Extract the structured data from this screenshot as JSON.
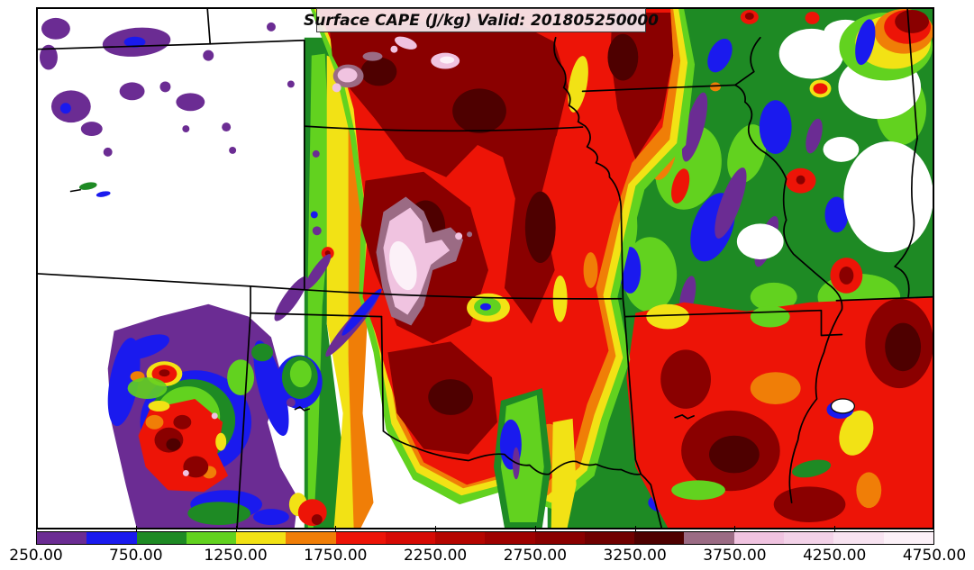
{
  "title": {
    "text": "Surface CAPE (J/kg) Valid: 201805250000"
  },
  "colorbar": {
    "min": 250,
    "max": 4750,
    "tick_values": [
      250,
      750,
      1250,
      1750,
      2250,
      2750,
      3250,
      3750,
      4250,
      4750
    ],
    "tick_labels": [
      "250.00",
      "750.00",
      "1250.00",
      "1750.00",
      "2250.00",
      "2750.00",
      "3250.00",
      "3750.00",
      "4250.00",
      "4750.00"
    ],
    "segments": [
      {
        "from": 250,
        "to": 500,
        "color": "#6B2C93"
      },
      {
        "from": 500,
        "to": 750,
        "color": "#1A1AEE"
      },
      {
        "from": 750,
        "to": 1000,
        "color": "#1E8A24"
      },
      {
        "from": 1000,
        "to": 1250,
        "color": "#62D21F"
      },
      {
        "from": 1250,
        "to": 1500,
        "color": "#F2E215"
      },
      {
        "from": 1500,
        "to": 1750,
        "color": "#F07E07"
      },
      {
        "from": 1750,
        "to": 2000,
        "color": "#ED1407"
      },
      {
        "from": 2000,
        "to": 2250,
        "color": "#D60A04"
      },
      {
        "from": 2250,
        "to": 2500,
        "color": "#B50500"
      },
      {
        "from": 2500,
        "to": 2750,
        "color": "#9E0100"
      },
      {
        "from": 2750,
        "to": 3000,
        "color": "#8A0000"
      },
      {
        "from": 3000,
        "to": 3250,
        "color": "#700000"
      },
      {
        "from": 3250,
        "to": 3500,
        "color": "#4E0000"
      },
      {
        "from": 3500,
        "to": 3750,
        "color": "#9B6B84"
      },
      {
        "from": 3750,
        "to": 4000,
        "color": "#F0C3E0"
      },
      {
        "from": 4000,
        "to": 4250,
        "color": "#F3D2E8"
      },
      {
        "from": 4250,
        "to": 4500,
        "color": "#F8E3F1"
      },
      {
        "from": 4500,
        "to": 4750,
        "color": "#FCF1F8"
      }
    ]
  },
  "map": {
    "background_color": "#FFFFFF",
    "boundary_color": "#000000",
    "visible_features": [
      "state-boundaries",
      "rivers",
      "filled-cape-contours"
    ]
  },
  "chart_data": {
    "type": "heatmap",
    "title": "Surface CAPE (J/kg) Valid: 201805250000",
    "variable": "Surface CAPE",
    "units": "J/kg",
    "valid_time": "201805250000",
    "scale_range": [
      250,
      4750
    ],
    "scale_interval": 250,
    "tick_labels": [
      "250.00",
      "750.00",
      "1250.00",
      "1750.00",
      "2250.00",
      "2750.00",
      "3250.00",
      "3750.00",
      "4250.00",
      "4750.00"
    ],
    "palette": [
      "#6B2C93",
      "#1A1AEE",
      "#1E8A24",
      "#62D21F",
      "#F2E215",
      "#F07E07",
      "#ED1407",
      "#D60A04",
      "#B50500",
      "#9E0100",
      "#8A0000",
      "#700000",
      "#4E0000",
      "#9B6B84",
      "#F0C3E0",
      "#F3D2E8",
      "#F8E3F1",
      "#FCF1F8"
    ],
    "legend_position": "bottom",
    "notes_on_field": "Maximum CAPE >4500 J/kg (white-pink blob) over central Kansas; broad 2750-3500 J/kg (dark red) across Kansas-Oklahoma; low CAPE white areas over Colorado/New Mexico high terrain; speckled 250-1500 J/kg mosaic over Missouri/Illinois; secondary >2750 J/kg maxima over Arkansas/Tennessee"
  }
}
